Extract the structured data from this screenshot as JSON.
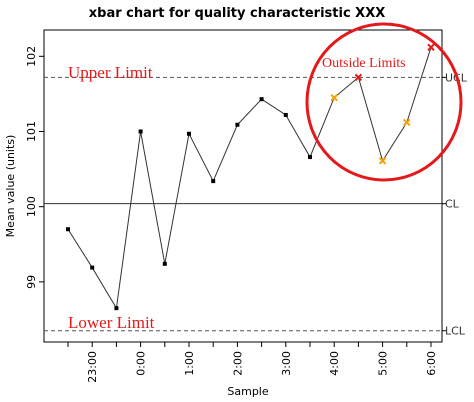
{
  "chart_data": {
    "type": "line",
    "title": "xbar chart for quality characteristic XXX",
    "xlabel": "Sample",
    "ylabel": "Mean value (units)",
    "x": [
      "22:30",
      "23:00",
      "23:30",
      "0:00",
      "0:30",
      "1:00",
      "1:30",
      "2:00",
      "2:30",
      "3:00",
      "3:30",
      "4:00",
      "4:30",
      "5:00",
      "5:30",
      "6:00"
    ],
    "xticks": [
      "23:00",
      "0:00",
      "1:00",
      "2:00",
      "3:00",
      "4:00",
      "5:00",
      "6:00"
    ],
    "values": [
      99.7,
      99.19,
      98.65,
      101.0,
      99.24,
      100.97,
      100.34,
      101.09,
      101.43,
      101.22,
      100.66,
      101.45,
      101.72,
      100.61,
      101.12,
      102.12
    ],
    "point_status": [
      "in",
      "in",
      "in",
      "in",
      "in",
      "in",
      "in",
      "in",
      "in",
      "in",
      "in",
      "warn",
      "out",
      "warn",
      "warn",
      "out"
    ],
    "ylim": [
      98.2,
      102.35
    ],
    "yticks": [
      99,
      100,
      101,
      102
    ],
    "reference_lines": [
      {
        "label": "UCL",
        "value": 101.72,
        "style": "dashed"
      },
      {
        "label": "CL",
        "value": 100.04,
        "style": "solid"
      },
      {
        "label": "LCL",
        "value": 98.35,
        "style": "dashed"
      }
    ],
    "annotations": {
      "upper_limit": "Upper Limit",
      "lower_limit": "Lower Limit",
      "outside_limits": "Outside Limits"
    },
    "colors": {
      "line": "#333333",
      "point_in": "#000000",
      "point_warn": "#f5a000",
      "point_out": "#e31a1c",
      "annotation": "#e31a1c"
    },
    "grid": false
  }
}
